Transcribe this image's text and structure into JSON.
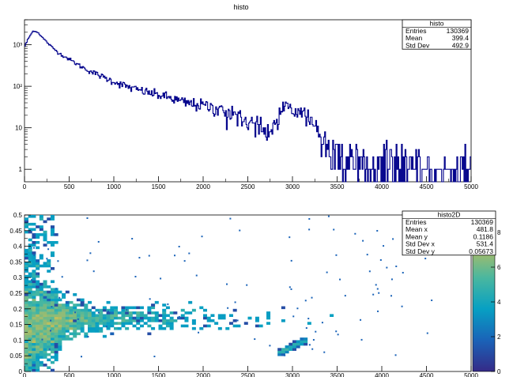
{
  "chart_data": [
    {
      "type": "histogram",
      "title": "histo",
      "xlim": [
        0,
        5000
      ],
      "ylim": [
        0.5,
        4000
      ],
      "log_y": true,
      "line_color": "#00008b",
      "x_ticks": [
        "0",
        "500",
        "1000",
        "1500",
        "2000",
        "2500",
        "3000",
        "3500",
        "4000",
        "4500",
        "5000"
      ],
      "y_ticks": [
        {
          "label": "1",
          "value": 1
        },
        {
          "label": "10",
          "value": 10
        },
        {
          "label": "10²",
          "value": 100
        },
        {
          "label": "10³",
          "value": 1000
        }
      ],
      "stats_box": {
        "title": "histo",
        "rows": [
          {
            "label": "Entries",
            "value": "130369"
          },
          {
            "label": "Mean",
            "value": "399.4"
          },
          {
            "label": "Std Dev",
            "value": "492.9"
          }
        ]
      },
      "shape_points": [
        [
          0,
          900
        ],
        [
          50,
          1500
        ],
        [
          100,
          2200
        ],
        [
          150,
          2000
        ],
        [
          200,
          1500
        ],
        [
          300,
          900
        ],
        [
          400,
          600
        ],
        [
          500,
          450
        ],
        [
          600,
          330
        ],
        [
          700,
          250
        ],
        [
          800,
          200
        ],
        [
          900,
          160
        ],
        [
          1000,
          130
        ],
        [
          1200,
          90
        ],
        [
          1400,
          70
        ],
        [
          1600,
          55
        ],
        [
          1800,
          40
        ],
        [
          2000,
          35
        ],
        [
          2200,
          28
        ],
        [
          2400,
          20
        ],
        [
          2600,
          12
        ],
        [
          2700,
          8
        ],
        [
          2800,
          12
        ],
        [
          2900,
          35
        ],
        [
          2950,
          40
        ],
        [
          3000,
          22
        ],
        [
          3100,
          28
        ],
        [
          3200,
          15
        ],
        [
          3300,
          6
        ],
        [
          3400,
          3
        ],
        [
          3500,
          2
        ],
        [
          3700,
          1.5
        ],
        [
          4000,
          1.2
        ],
        [
          4500,
          1
        ],
        [
          5000,
          0.8
        ]
      ]
    },
    {
      "type": "heatmap",
      "title": "histo2D",
      "xlim": [
        0,
        5000
      ],
      "ylim": [
        0,
        0.5
      ],
      "x_ticks": [
        "0",
        "500",
        "1000",
        "1500",
        "2000",
        "2500",
        "3000",
        "3500",
        "4000",
        "4500",
        "5000"
      ],
      "y_ticks": [
        "0",
        "0.05",
        "0.1",
        "0.15",
        "0.2",
        "0.25",
        "0.3",
        "0.35",
        "0.4",
        "0.45",
        "0.5"
      ],
      "colorbar": {
        "min": 0,
        "max": 9,
        "ticks": [
          "0",
          "2",
          "4",
          "6",
          "8"
        ],
        "colors": [
          "#352a87",
          "#1a63b8",
          "#07a0c3",
          "#4ab79f",
          "#b5bd60",
          "#f9d54a"
        ]
      },
      "stats_box": {
        "title": "histo2D",
        "rows": [
          {
            "label": "Entries",
            "value": "130369"
          },
          {
            "label": "Mean x",
            "value": "481.8"
          },
          {
            "label": "Mean y",
            "value": "0.1186"
          },
          {
            "label": "Std Dev x",
            "value": "531.4"
          },
          {
            "label": "Std Dev y",
            "value": "0.05673"
          }
        ]
      },
      "band_center": [
        [
          0,
          0.12
        ],
        [
          200,
          0.15
        ],
        [
          500,
          0.17
        ],
        [
          1000,
          0.17
        ],
        [
          2000,
          0.17
        ],
        [
          3000,
          0.16
        ],
        [
          4000,
          0.19
        ],
        [
          5000,
          0.21
        ]
      ],
      "secondary_cluster": {
        "x_range": [
          2850,
          3150
        ],
        "y_range": [
          0.06,
          0.1
        ]
      }
    }
  ]
}
